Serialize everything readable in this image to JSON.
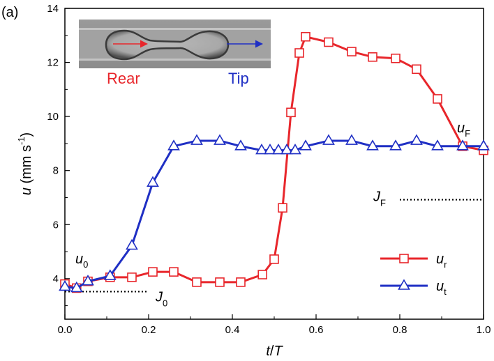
{
  "panel_label": "(a)",
  "chart_data": {
    "type": "line",
    "xlim": [
      0,
      1
    ],
    "ylim": [
      2.5,
      14
    ],
    "x_ticks": [
      "0.0",
      "0.2",
      "0.4",
      "0.6",
      "0.8",
      "1.0"
    ],
    "x_tick_values": [
      0,
      0.2,
      0.4,
      0.6,
      0.8,
      1.0
    ],
    "y_ticks": [
      "4",
      "6",
      "8",
      "10",
      "12",
      "14"
    ],
    "y_tick_values": [
      4,
      6,
      8,
      10,
      12,
      14
    ],
    "xlabel": {
      "main": "t",
      "sep": "/",
      "sub": "T"
    },
    "ylabel": {
      "var": "u",
      "units": " (mm s",
      "exp": "-1",
      "close": ")"
    },
    "legend_position": "lower-right",
    "series": [
      {
        "name": "u",
        "name_sub": "r",
        "color": "#e8262b",
        "marker": "square",
        "points": [
          [
            0.0,
            3.8
          ],
          [
            0.028,
            3.65
          ],
          [
            0.055,
            3.9
          ],
          [
            0.108,
            4.05
          ],
          [
            0.16,
            4.05
          ],
          [
            0.21,
            4.25
          ],
          [
            0.26,
            4.25
          ],
          [
            0.315,
            3.87
          ],
          [
            0.37,
            3.87
          ],
          [
            0.42,
            3.87
          ],
          [
            0.472,
            4.15
          ],
          [
            0.5,
            4.72
          ],
          [
            0.52,
            6.62
          ],
          [
            0.54,
            10.15
          ],
          [
            0.56,
            12.35
          ],
          [
            0.575,
            12.95
          ],
          [
            0.63,
            12.75
          ],
          [
            0.685,
            12.4
          ],
          [
            0.735,
            12.2
          ],
          [
            0.79,
            12.15
          ],
          [
            0.84,
            11.75
          ],
          [
            0.89,
            10.65
          ],
          [
            0.95,
            8.9
          ],
          [
            1.0,
            8.75
          ]
        ]
      },
      {
        "name": "u",
        "name_sub": "t",
        "color": "#1f2fc4",
        "marker": "triangle",
        "points": [
          [
            0.0,
            3.7
          ],
          [
            0.028,
            3.65
          ],
          [
            0.055,
            3.9
          ],
          [
            0.108,
            4.1
          ],
          [
            0.16,
            5.22
          ],
          [
            0.21,
            7.55
          ],
          [
            0.26,
            8.9
          ],
          [
            0.315,
            9.1
          ],
          [
            0.37,
            9.1
          ],
          [
            0.42,
            8.9
          ],
          [
            0.47,
            8.75
          ],
          [
            0.49,
            8.75
          ],
          [
            0.51,
            8.75
          ],
          [
            0.53,
            8.75
          ],
          [
            0.55,
            8.75
          ],
          [
            0.575,
            8.9
          ],
          [
            0.63,
            9.1
          ],
          [
            0.685,
            9.1
          ],
          [
            0.735,
            8.9
          ],
          [
            0.79,
            8.9
          ],
          [
            0.84,
            9.1
          ],
          [
            0.89,
            8.9
          ],
          [
            0.95,
            8.9
          ],
          [
            1.0,
            8.9
          ]
        ]
      }
    ],
    "reference_lines": [
      {
        "label": "J",
        "sub": "0",
        "y": 3.52,
        "x_from": 0.0,
        "x_to": 0.2
      },
      {
        "label": "J",
        "sub": "F",
        "y": 6.92,
        "x_from": 0.8,
        "x_to": 1.0
      }
    ],
    "annotations": [
      {
        "label": "u",
        "sub": "0"
      },
      {
        "label": "u",
        "sub": "F"
      }
    ]
  },
  "inset": {
    "rear_label": "Rear",
    "tip_label": "Tip",
    "rear_color": "#e8262b",
    "tip_color": "#1f2fc4"
  }
}
